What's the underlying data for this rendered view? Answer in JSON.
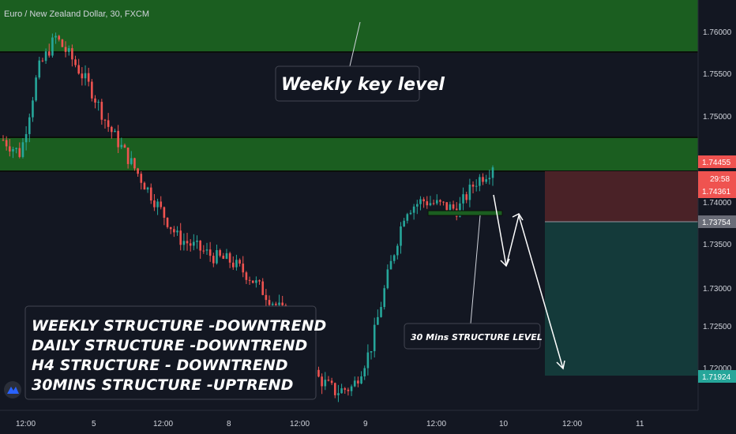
{
  "symbol_title": "Euro / New Zealand Dollar, 30, FXCM",
  "colors": {
    "background": "#131722",
    "bull": "#26a69a",
    "bear": "#ef5350",
    "zone_fill": "#1b5e20",
    "zone_border": "#0b0f0b",
    "stop_zone": "#4a2227",
    "target_zone": "#143a3a",
    "axis_text": "#d1d4dc"
  },
  "price_axis": {
    "labels": [
      "1.76000",
      "1.75500",
      "1.75000",
      "1.74000",
      "1.73500",
      "1.73000",
      "1.72500",
      "1.72000"
    ],
    "tags": [
      {
        "text": "1.74455",
        "color": "#ef5350"
      },
      {
        "text": "29:58",
        "color": "#ef5350"
      },
      {
        "text": "1.74361",
        "color": "#ef5350"
      },
      {
        "text": "1.73754",
        "color": "#6a6d78"
      },
      {
        "text": "1.71924",
        "color": "#26a69a"
      }
    ]
  },
  "time_axis": {
    "labels": [
      "12:00",
      "5",
      "12:00",
      "8",
      "12:00",
      "9",
      "12:00",
      "10",
      "12:00",
      "11"
    ]
  },
  "annotations": {
    "weekly_key_level": "Weekly key level",
    "structure_lines": [
      "WEEKLY STRUCTURE -DOWNTREND",
      "DAILY STRUCTURE -DOWNTREND",
      "H4 STRUCTURE - DOWNTREND",
      "30MINS STRUCTURE -UPTREND"
    ],
    "structure_level_label": "30 Mins STRUCTURE LEVEL"
  },
  "logo": "tradingview-logo-icon",
  "chart_data": {
    "type": "candlestick",
    "title": "Euro / New Zealand Dollar, 30, FXCM",
    "ylim": [
      1.7185,
      1.7625
    ],
    "x_ticks": [
      "12:00",
      "5",
      "12:00",
      "8",
      "12:00",
      "9",
      "12:00",
      "10",
      "12:00",
      "11"
    ],
    "approx_close_path": [
      1.7475,
      1.746,
      1.755,
      1.7585,
      1.756,
      1.753,
      1.749,
      1.746,
      1.743,
      1.74,
      1.737,
      1.736,
      1.735,
      1.7345,
      1.733,
      1.731,
      1.729,
      1.725,
      1.722,
      1.7205,
      1.721,
      1.725,
      1.733,
      1.74,
      1.741,
      1.7405,
      1.74,
      1.743,
      1.7445
    ],
    "last_price": 1.74455,
    "bid": 1.74361,
    "countdown": "29:58",
    "entry": 1.73754,
    "target": 1.71924,
    "zones": [
      {
        "name": "weekly-key-level",
        "from": 1.7578,
        "to": 1.763
      },
      {
        "name": "supply-zone",
        "from": 1.7435,
        "to": 1.7478
      }
    ]
  }
}
